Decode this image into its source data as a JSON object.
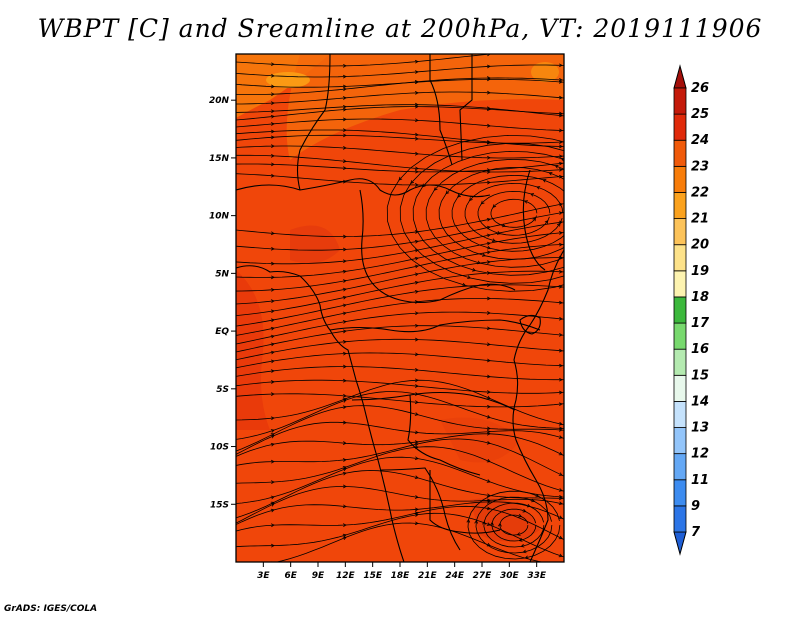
{
  "title": "WBPT [C] and Sreamline at 200hPa, VT: 2019111906",
  "footer": "GrADS: IGES/COLA",
  "map": {
    "lon_range": [
      0,
      36
    ],
    "lat_range": [
      -20,
      24
    ],
    "lon_ticks": [
      {
        "value": 3,
        "label": "3E"
      },
      {
        "value": 6,
        "label": "6E"
      },
      {
        "value": 9,
        "label": "9E"
      },
      {
        "value": 12,
        "label": "12E"
      },
      {
        "value": 15,
        "label": "15E"
      },
      {
        "value": 18,
        "label": "18E"
      },
      {
        "value": 21,
        "label": "21E"
      },
      {
        "value": 24,
        "label": "24E"
      },
      {
        "value": 27,
        "label": "27E"
      },
      {
        "value": 30,
        "label": "30E"
      },
      {
        "value": 33,
        "label": "33E"
      }
    ],
    "lat_ticks": [
      {
        "value": 20,
        "label": "20N"
      },
      {
        "value": 15,
        "label": "15N"
      },
      {
        "value": 10,
        "label": "10N"
      },
      {
        "value": 5,
        "label": "5N"
      },
      {
        "value": 0,
        "label": "EQ"
      },
      {
        "value": -5,
        "label": "5S"
      },
      {
        "value": -10,
        "label": "10S"
      },
      {
        "value": -15,
        "label": "15S"
      }
    ],
    "field_color": "#f0460a",
    "field_range_approx": [
      22,
      25
    ]
  },
  "colorbar": {
    "labels": [
      "7",
      "9",
      "11",
      "12",
      "13",
      "14",
      "15",
      "16",
      "17",
      "18",
      "19",
      "20",
      "21",
      "22",
      "23",
      "24",
      "25",
      "26"
    ],
    "colors": [
      "#1f5fd6",
      "#2c75e6",
      "#3d8cf0",
      "#64a8f5",
      "#93c5fa",
      "#c5e2fc",
      "#e8f8ec",
      "#b4eab0",
      "#78d96e",
      "#3cb83c",
      "#fdf3b0",
      "#fde28a",
      "#fcc35a",
      "#fba21e",
      "#f87d0a",
      "#f05a0a",
      "#e02a0a",
      "#c41a0a",
      "#a40f0a"
    ]
  }
}
